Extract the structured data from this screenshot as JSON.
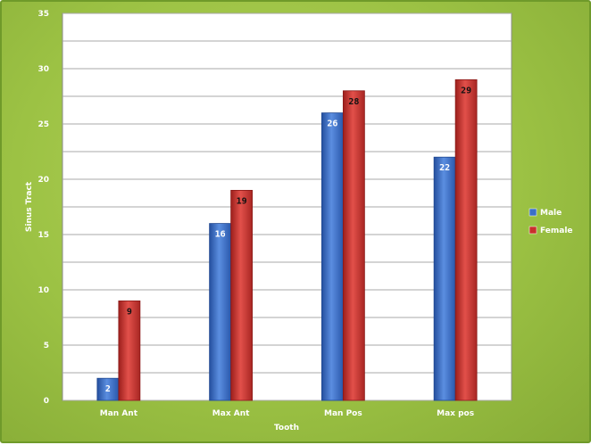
{
  "chart_data": {
    "type": "bar",
    "categories": [
      "Man Ant",
      "Max Ant",
      "Man Pos",
      "Max pos"
    ],
    "series": [
      {
        "name": "Male",
        "values": [
          2,
          16,
          26,
          22
        ],
        "color": "#3a6fc8"
      },
      {
        "name": "Female",
        "values": [
          9,
          19,
          28,
          29
        ],
        "color": "#c8302c"
      }
    ],
    "yticks": [
      0,
      5,
      10,
      15,
      20,
      25,
      30,
      35
    ],
    "ylim": [
      0,
      35
    ],
    "xlabel": "Tooth",
    "ylabel": "Sinus Tract",
    "grid": true,
    "legend_position": "right",
    "colors": {
      "plot_background": "#ffffff",
      "frame": "#9cc244",
      "gridline": "#a8a8a8"
    }
  }
}
